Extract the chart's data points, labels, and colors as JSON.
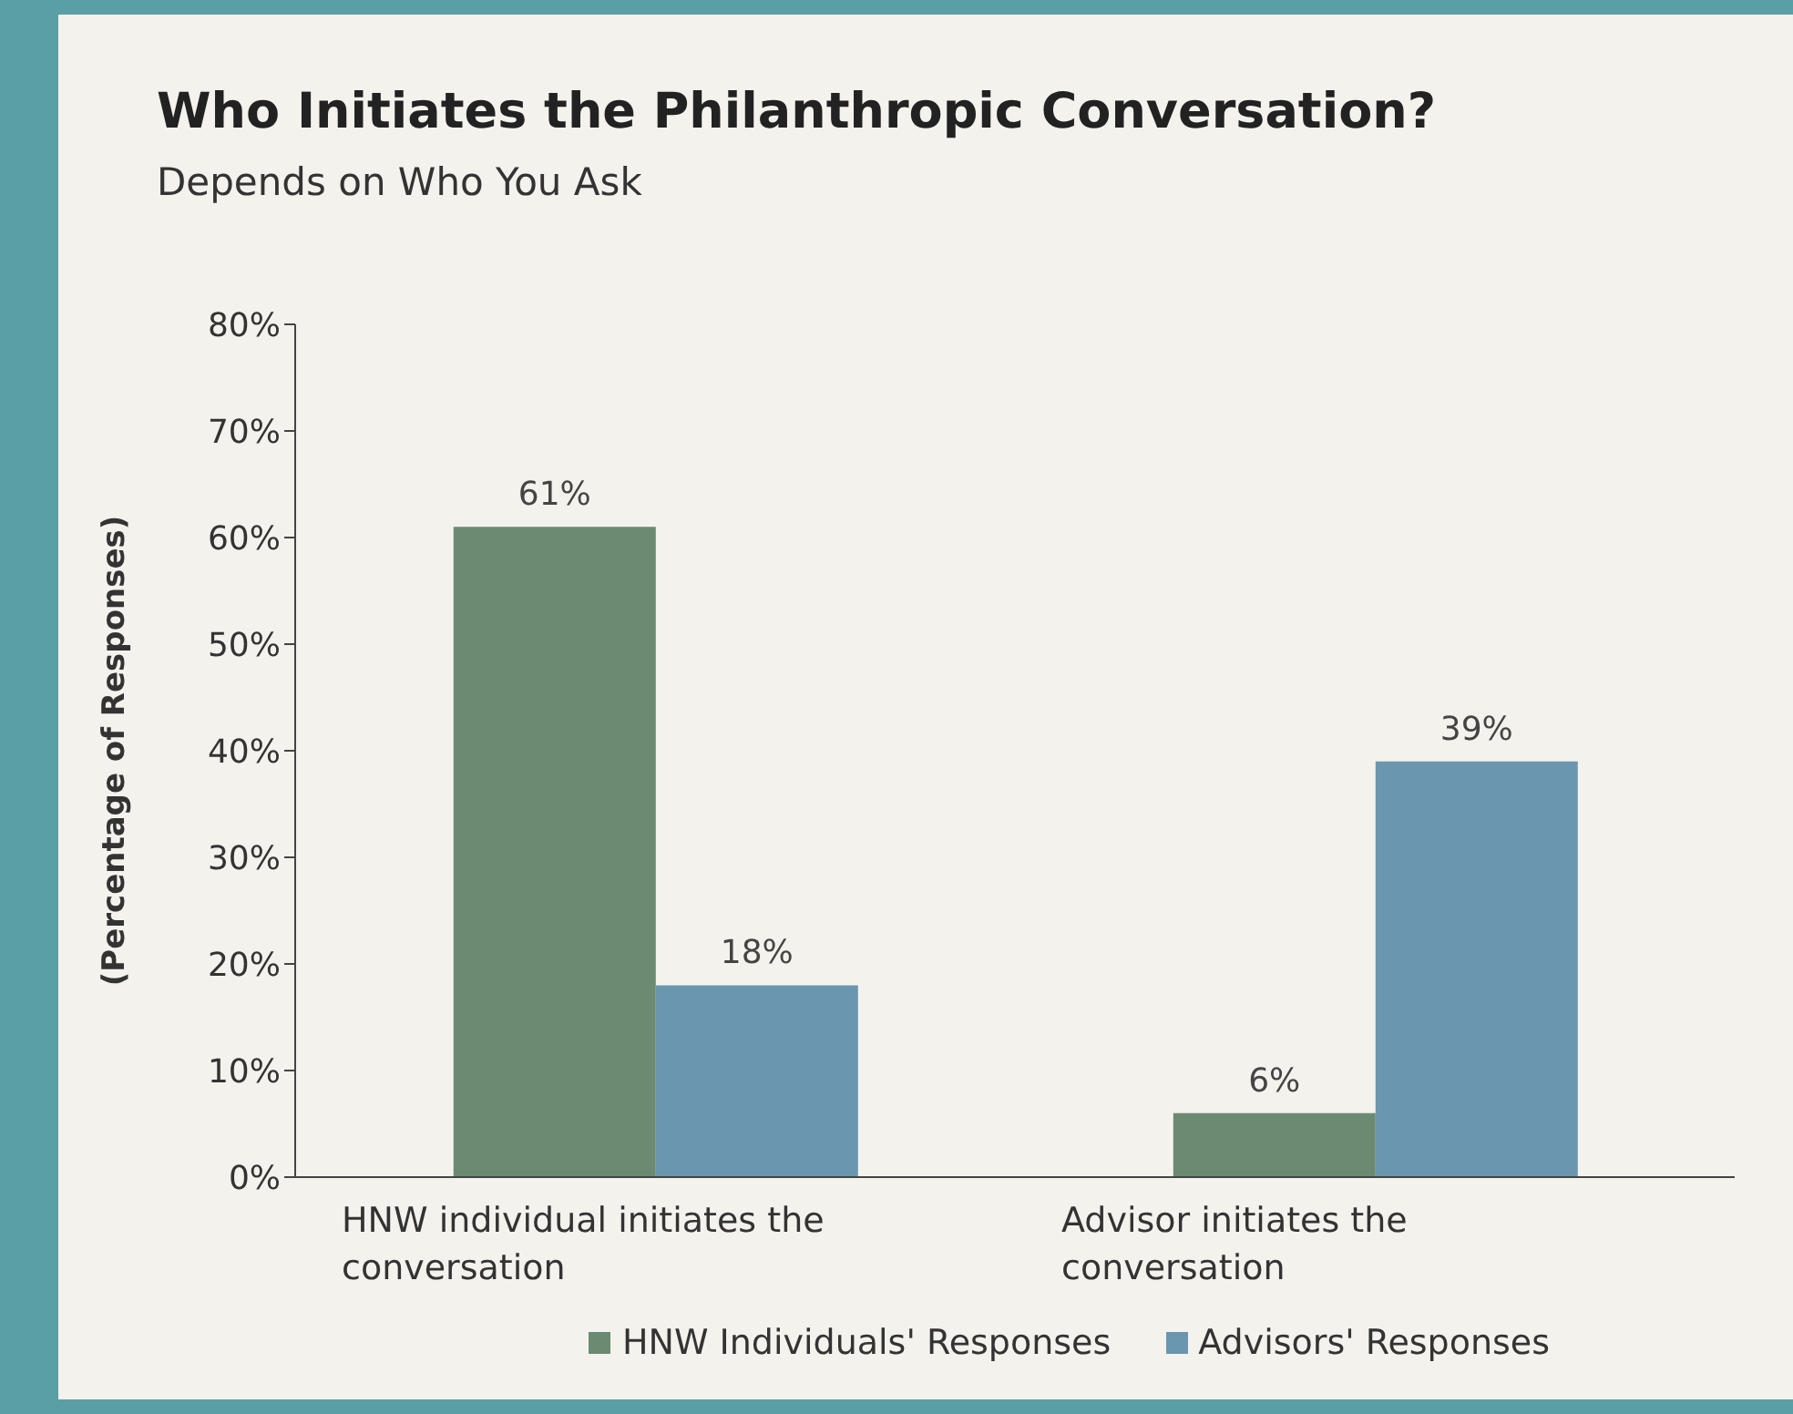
{
  "chart_data": {
    "type": "bar",
    "title": "Who Initiates the Philanthropic Conversation?",
    "subtitle": "Depends on Who You Ask",
    "ylabel": "(Percentage of Responses)",
    "categories": [
      "HNW individual initiates the conversation",
      "Advisor initiates the conversation"
    ],
    "series": [
      {
        "name": "HNW Individuals' Responses",
        "color": "#6b8a72",
        "values": [
          61,
          6
        ],
        "value_labels": [
          "61%",
          "6%"
        ]
      },
      {
        "name": "Advisors' Responses",
        "color": "#6a96b0",
        "values": [
          18,
          39
        ],
        "value_labels": [
          "18%",
          "39%"
        ]
      }
    ],
    "ylim": [
      0,
      80
    ],
    "yticks": [
      {
        "value": 0,
        "label": "0%"
      },
      {
        "value": 10,
        "label": "10%"
      },
      {
        "value": 20,
        "label": "20%"
      },
      {
        "value": 30,
        "label": "30%"
      },
      {
        "value": 40,
        "label": "40%"
      },
      {
        "value": 50,
        "label": "50%"
      },
      {
        "value": 60,
        "label": "60%"
      },
      {
        "value": 70,
        "label": "70%"
      },
      {
        "value": 80,
        "label": "80%"
      }
    ],
    "grid": false,
    "legend": "bottom"
  }
}
